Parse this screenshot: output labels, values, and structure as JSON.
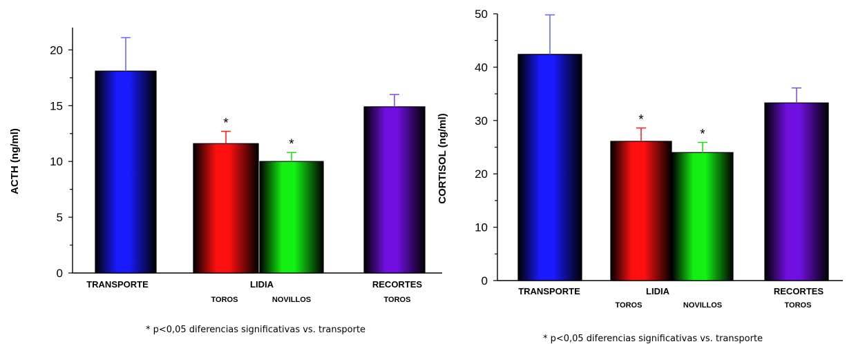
{
  "chart_data": [
    {
      "type": "bar",
      "ylabel": "ACTH (ng/ml)",
      "ylim": [
        0,
        22
      ],
      "yticks": [
        0,
        5,
        10,
        15,
        20
      ],
      "categories": [
        "TRANSPORTE",
        "TOROS",
        "NOVILLOS",
        "RECORTES"
      ],
      "group_labels": [
        "TRANSPORTE",
        "LIDIA",
        "RECORTES"
      ],
      "sub_labels": [
        "TOROS",
        "NOVILLOS",
        "TOROS"
      ],
      "values": [
        18.1,
        11.6,
        10.0,
        14.9
      ],
      "errors": [
        3.0,
        1.1,
        0.8,
        1.1
      ],
      "colors": [
        "#1a1aff",
        "#ff1010",
        "#14f014",
        "#7010e0"
      ],
      "significant": [
        false,
        true,
        true,
        false
      ],
      "marker": "*",
      "footnote": "* p<0,05 diferencias significativas vs. transporte"
    },
    {
      "type": "bar",
      "ylabel": "CORTISOL (ng/ml)",
      "ylim": [
        0,
        50
      ],
      "yticks": [
        0,
        10,
        20,
        30,
        40,
        50
      ],
      "categories": [
        "TRANSPORTE",
        "TOROS",
        "NOVILLOS",
        "RECORTES"
      ],
      "group_labels": [
        "TRANSPORTE",
        "LIDIA",
        "RECORTES"
      ],
      "sub_labels": [
        "TOROS",
        "NOVILLOS",
        "TOROS"
      ],
      "values": [
        42.4,
        26.1,
        24.0,
        33.3
      ],
      "errors": [
        7.4,
        2.5,
        1.9,
        2.8
      ],
      "colors": [
        "#1a1aff",
        "#ff1010",
        "#14f014",
        "#7010e0"
      ],
      "significant": [
        false,
        true,
        true,
        false
      ],
      "marker": "*",
      "footnote": "* p<0,05 diferencias significativas vs. transporte"
    }
  ]
}
